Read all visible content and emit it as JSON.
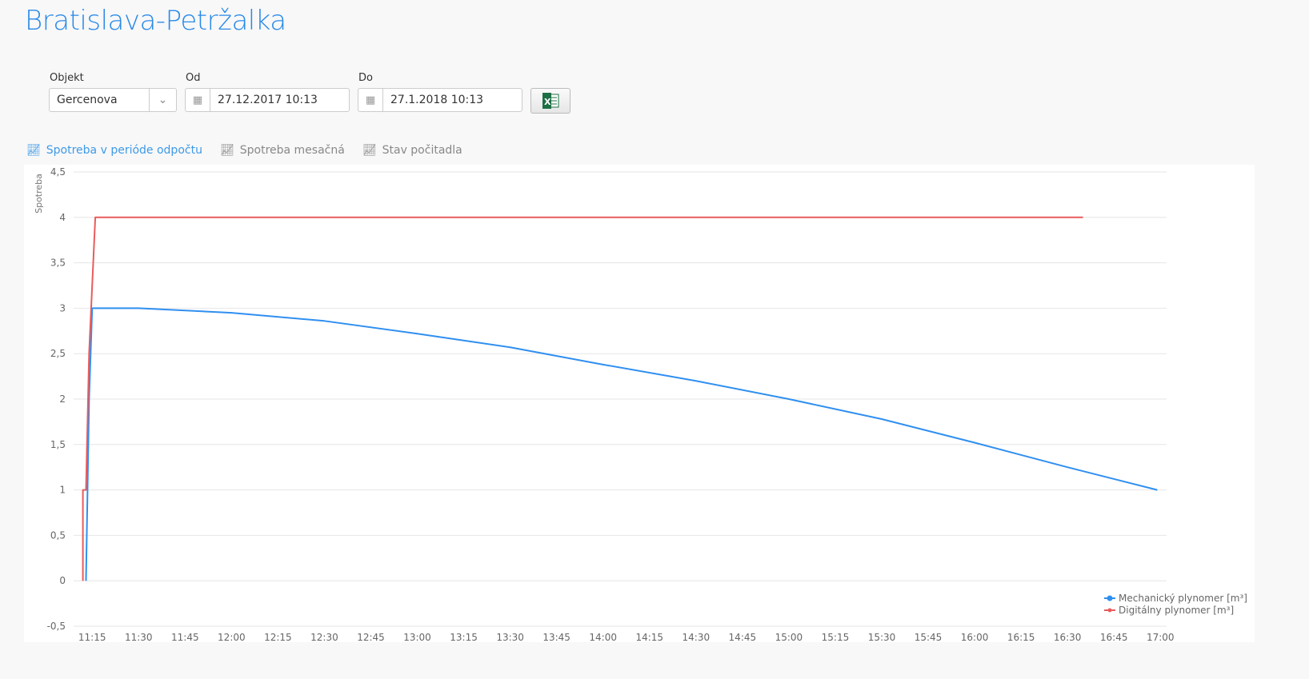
{
  "header": {
    "title": "Bratislava-Petržalka"
  },
  "filters": {
    "object_label": "Objekt",
    "object_value": "Gercenova",
    "from_label": "Od",
    "from_value": "27.12.2017 10:13",
    "to_label": "Do",
    "to_value": "27.1.2018 10:13",
    "export_icon": "excel-icon"
  },
  "tabs": [
    {
      "label": "Spotreba v perióde odpočtu",
      "icon": "line-chart-icon",
      "active": true
    },
    {
      "label": "Spotreba mesačná",
      "icon": "line-chart-icon"
    },
    {
      "label": "Stav počitadla",
      "icon": "line-chart-icon"
    }
  ],
  "chart_data": {
    "type": "line",
    "ylabel": "Spotreba",
    "ylim": [
      -0.5,
      4.5
    ],
    "yticks": [
      "-0,5",
      "0",
      "0,5",
      "1",
      "1,5",
      "2",
      "2,5",
      "3",
      "3,5",
      "4",
      "4,5"
    ],
    "xlim": [
      "11:09",
      "17:02"
    ],
    "xticks": [
      "11:15",
      "11:30",
      "11:45",
      "12:00",
      "12:15",
      "12:30",
      "12:45",
      "13:00",
      "13:15",
      "13:30",
      "13:45",
      "14:00",
      "14:15",
      "14:30",
      "14:45",
      "15:00",
      "15:15",
      "15:30",
      "15:45",
      "16:00",
      "16:15",
      "16:30",
      "16:45",
      "17:00"
    ],
    "grid": true,
    "legend": "bottom-right",
    "series": [
      {
        "name": "Mechanický plynomer [m³]",
        "color": "#2f8ff0",
        "points": [
          [
            "11:13",
            0
          ],
          [
            "11:14",
            2
          ],
          [
            "11:15",
            3
          ],
          [
            "11:30",
            3
          ],
          [
            "12:00",
            2.95
          ],
          [
            "12:30",
            2.86
          ],
          [
            "13:00",
            2.72
          ],
          [
            "13:30",
            2.57
          ],
          [
            "14:00",
            2.38
          ],
          [
            "14:30",
            2.2
          ],
          [
            "15:00",
            2.0
          ],
          [
            "15:30",
            1.78
          ],
          [
            "16:00",
            1.52
          ],
          [
            "16:30",
            1.25
          ],
          [
            "16:59",
            1.0
          ]
        ]
      },
      {
        "name": "Digitálny plynomer [m³]",
        "color": "#e85c5c",
        "points": [
          [
            "11:12",
            0
          ],
          [
            "11:12",
            1
          ],
          [
            "11:13",
            1
          ],
          [
            "11:14",
            2.5
          ],
          [
            "11:16",
            4
          ],
          [
            "16:35",
            4
          ]
        ]
      }
    ]
  }
}
